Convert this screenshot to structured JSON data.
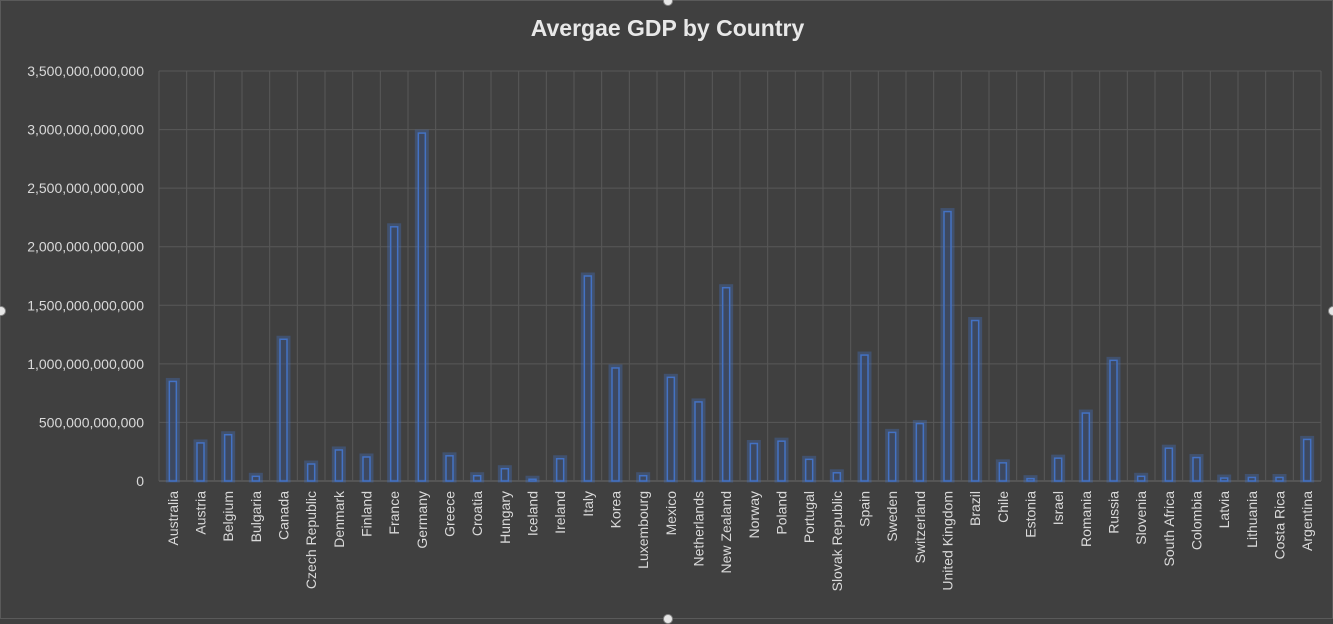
{
  "chart_data": {
    "type": "bar",
    "title": "Avergae GDP by Country",
    "xlabel": "",
    "ylabel": "",
    "ylim": [
      0,
      3500000000000
    ],
    "yticks": [
      0,
      500000000000,
      1000000000000,
      1500000000000,
      2000000000000,
      2500000000000,
      3000000000000,
      3500000000000
    ],
    "ytick_labels": [
      "0",
      "500,000,000,000",
      "1,000,000,000,000",
      "1,500,000,000,000",
      "2,000,000,000,000",
      "2,500,000,000,000",
      "3,000,000,000,000",
      "3,500,000,000,000"
    ],
    "grid": true,
    "legend": "none",
    "bar_color": "#4472c4",
    "categories": [
      "Australia",
      "Austria",
      "Belgium",
      "Bulgaria",
      "Canada",
      "Czech Republic",
      "Denmark",
      "Finland",
      "France",
      "Germany",
      "Greece",
      "Croatia",
      "Hungary",
      "Iceland",
      "Ireland",
      "Italy",
      "Korea",
      "Luxembourg",
      "Mexico",
      "Netherlands",
      "New Zealand",
      "Norway",
      "Poland",
      "Portugal",
      "Slovak Republic",
      "Spain",
      "Sweden",
      "Switzerland",
      "United Kingdom",
      "Brazil",
      "Chile",
      "Estonia",
      "Israel",
      "Romania",
      "Russia",
      "Slovenia",
      "South Africa",
      "Colombia",
      "Latvia",
      "Lithuania",
      "Costa Rica",
      "Argentina"
    ],
    "values": [
      850000000000,
      325000000000,
      395000000000,
      40000000000,
      1210000000000,
      145000000000,
      265000000000,
      205000000000,
      2170000000000,
      2970000000000,
      215000000000,
      45000000000,
      105000000000,
      15000000000,
      190000000000,
      1750000000000,
      965000000000,
      45000000000,
      885000000000,
      675000000000,
      1650000000000,
      320000000000,
      340000000000,
      185000000000,
      70000000000,
      1075000000000,
      415000000000,
      490000000000,
      2300000000000,
      1370000000000,
      155000000000,
      20000000000,
      195000000000,
      580000000000,
      1030000000000,
      40000000000,
      280000000000,
      200000000000,
      25000000000,
      30000000000,
      30000000000,
      355000000000
    ]
  }
}
